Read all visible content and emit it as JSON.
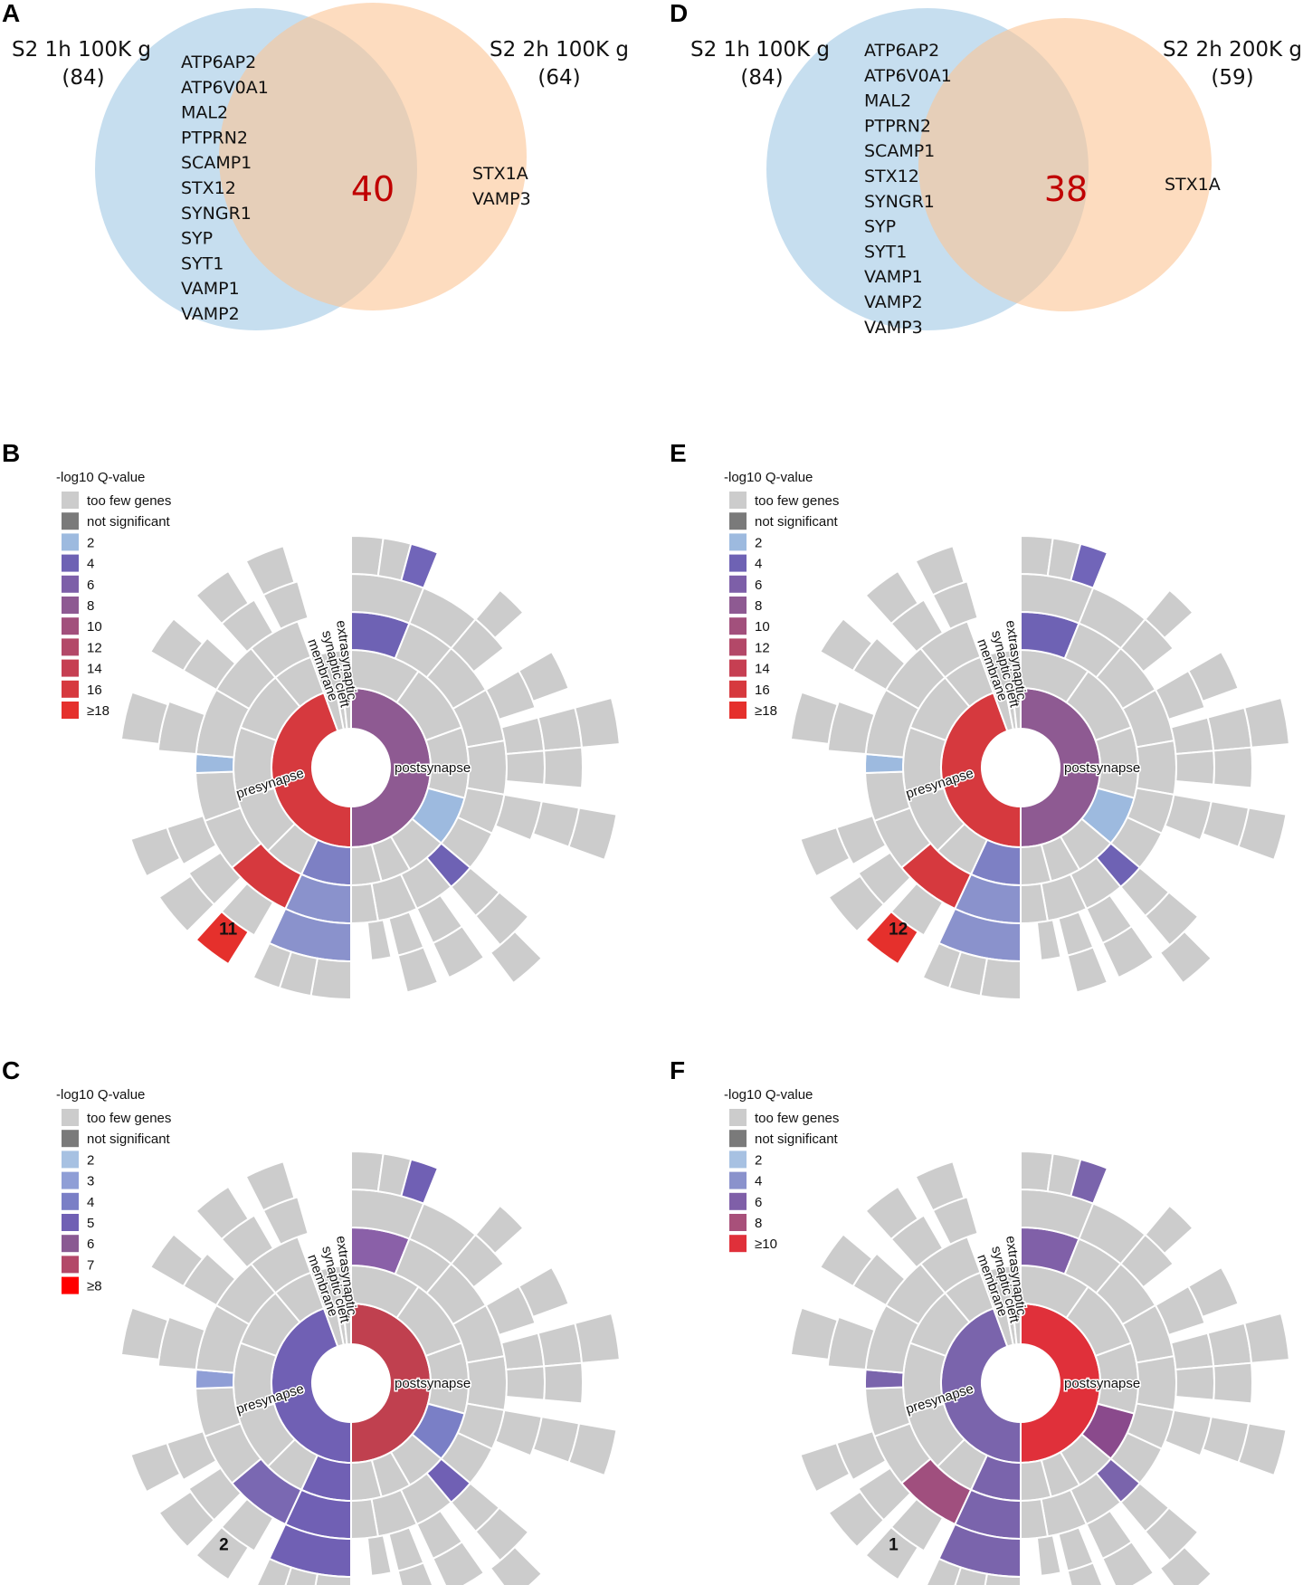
{
  "colors": {
    "blue_circle": "#a8cce6",
    "orange_circle": "#fbc595",
    "gray": "#cccccc",
    "dark_gray": "#7a7a7a",
    "count_red": "#c00000"
  },
  "venn_panels": [
    {
      "letter": "A",
      "left_title": "S2 1h 100K g",
      "left_count": "(84)",
      "right_title": "S2 2h 100K g",
      "right_count": "(64)",
      "left_only_genes": [
        "ATP6AP2",
        "ATP6V0A1",
        "MAL2",
        "PTPRN2",
        "SCAMP1",
        "STX12",
        "SYNGR1",
        "SYP",
        "SYT1",
        "VAMP1",
        "VAMP2"
      ],
      "overlap_count": "40",
      "right_only_genes": [
        "STX1A",
        "VAMP3"
      ]
    },
    {
      "letter": "D",
      "left_title": "S2 1h 100K g",
      "left_count": "(84)",
      "right_title": "S2 2h 200K g",
      "right_count": "(59)",
      "left_only_genes": [
        "ATP6AP2",
        "ATP6V0A1",
        "MAL2",
        "PTPRN2",
        "SCAMP1",
        "STX12",
        "SYNGR1",
        "SYP",
        "SYT1",
        "VAMP1",
        "VAMP2",
        "VAMP3"
      ],
      "overlap_count": "38",
      "right_only_genes": [
        "STX1A"
      ]
    }
  ],
  "sunburst_panels": [
    {
      "letter": "B",
      "legend_title": "-log10 Q-value",
      "legend": [
        {
          "label": "too few genes",
          "color": "#cccccc"
        },
        {
          "label": "not significant",
          "color": "#7a7a7a"
        },
        {
          "label": "2",
          "color": "#9dbadf"
        },
        {
          "label": "4",
          "color": "#6e62b4"
        },
        {
          "label": "6",
          "color": "#7d5fa8"
        },
        {
          "label": "8",
          "color": "#8e5a92"
        },
        {
          "label": "10",
          "color": "#a2507c"
        },
        {
          "label": "12",
          "color": "#b34868"
        },
        {
          "label": "14",
          "color": "#c63f52"
        },
        {
          "label": "16",
          "color": "#d6393e"
        },
        {
          "label": "≥18",
          "color": "#e5302c"
        }
      ],
      "labels": {
        "center": "",
        "pre": "presynapse",
        "post": "postsynapse",
        "r1": "membrane",
        "r2": "synaptic cleft",
        "r3": "extrasynaptic"
      },
      "marker": "11",
      "colors": {
        "core": "#e5302c",
        "pre": "#d6393e",
        "post": "#8e5a92",
        "pre_mid_a": "#d6393e",
        "pre_mid_b": "#7d80c4",
        "pre_outer_b": "#8a92cc",
        "post_mid": "#9dbadf",
        "post_small": "#6e62b4",
        "post_top": "#6e62b4",
        "post_top_tip": "#7165b9",
        "pre_left_tip": "#9dbadf",
        "marker_block": "#e5302c"
      }
    },
    {
      "letter": "E",
      "legend_title": "-log10 Q-value",
      "legend": [
        {
          "label": "too few genes",
          "color": "#cccccc"
        },
        {
          "label": "not significant",
          "color": "#7a7a7a"
        },
        {
          "label": "2",
          "color": "#9dbadf"
        },
        {
          "label": "4",
          "color": "#6e62b4"
        },
        {
          "label": "6",
          "color": "#7d5fa8"
        },
        {
          "label": "8",
          "color": "#8e5a92"
        },
        {
          "label": "10",
          "color": "#a2507c"
        },
        {
          "label": "12",
          "color": "#b34868"
        },
        {
          "label": "14",
          "color": "#c63f52"
        },
        {
          "label": "16",
          "color": "#d6393e"
        },
        {
          "label": "≥18",
          "color": "#e5302c"
        }
      ],
      "labels": {
        "center": "",
        "pre": "presynapse",
        "post": "postsynapse",
        "r1": "membrane",
        "r2": "synaptic cleft",
        "r3": "extrasynaptic"
      },
      "marker": "12",
      "colors": {
        "core": "#e5302c",
        "pre": "#d6393e",
        "post": "#8e5a92",
        "pre_mid_a": "#d6393e",
        "pre_mid_b": "#7d80c4",
        "pre_outer_b": "#8a92cc",
        "post_mid": "#9dbadf",
        "post_small": "#6e62b4",
        "post_top": "#6e62b4",
        "post_top_tip": "#7165b9",
        "pre_left_tip": "#9dbadf",
        "marker_block": "#e5302c"
      }
    },
    {
      "letter": "C",
      "legend_title": "-log10 Q-value",
      "legend": [
        {
          "label": "too few genes",
          "color": "#cccccc"
        },
        {
          "label": "not significant",
          "color": "#7a7a7a"
        },
        {
          "label": "2",
          "color": "#a7c1e2"
        },
        {
          "label": "3",
          "color": "#8f9ed6"
        },
        {
          "label": "4",
          "color": "#7a7fc6"
        },
        {
          "label": "5",
          "color": "#7060b4"
        },
        {
          "label": "6",
          "color": "#8a5a92"
        },
        {
          "label": "7",
          "color": "#b34868"
        },
        {
          "label": "≥8",
          "color": "#ff0000"
        }
      ],
      "labels": {
        "center": "",
        "pre": "presynapse",
        "post": "postsynapse",
        "r1": "membrane",
        "r2": "synaptic cleft",
        "r3": "extrasynaptic"
      },
      "marker": "2",
      "colors": {
        "core": "#ff0000",
        "pre": "#7060b4",
        "post": "#c0404f",
        "pre_mid_a": "#7a68b2",
        "pre_mid_b": "#7060b4",
        "pre_outer_b": "#7060b4",
        "post_mid": "#7a7fc6",
        "post_small": "#7060b4",
        "post_top": "#8a60a8",
        "post_top_tip": "#7060b4",
        "pre_left_tip": "#8f9ed6",
        "marker_block": "#cccccc"
      }
    },
    {
      "letter": "F",
      "legend_title": "-log10 Q-value",
      "legend": [
        {
          "label": "too few genes",
          "color": "#cccccc"
        },
        {
          "label": "not significant",
          "color": "#7a7a7a"
        },
        {
          "label": "2",
          "color": "#a7c1e2"
        },
        {
          "label": "4",
          "color": "#8a92cc"
        },
        {
          "label": "6",
          "color": "#7f5fa8"
        },
        {
          "label": "8",
          "color": "#a8507a"
        },
        {
          "label": "≥10",
          "color": "#e0303a"
        }
      ],
      "labels": {
        "center": "",
        "pre": "presynapse",
        "post": "postsynapse",
        "r1": "membrane",
        "r2": "synaptic cleft",
        "r3": "extrasynaptic"
      },
      "marker": "1",
      "colors": {
        "core": "#ff2a0a",
        "pre": "#7a64ac",
        "post": "#e0303a",
        "pre_mid_a": "#a04f7e",
        "pre_mid_b": "#7a64ac",
        "pre_outer_b": "#7a64ac",
        "post_mid": "#8a4a8c",
        "post_small": "#7a64ac",
        "post_top": "#8060a8",
        "post_top_tip": "#7a64ac",
        "pre_left_tip": "#7a64ac",
        "marker_block": "#cccccc"
      }
    }
  ]
}
